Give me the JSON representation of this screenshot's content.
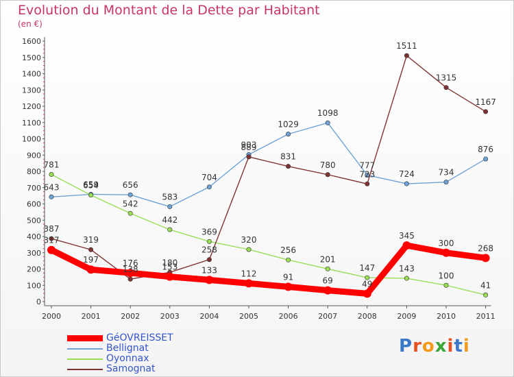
{
  "title": "Evolution du Montant de la Dette par Habitant",
  "subtitle": "(en €)",
  "logo": {
    "text": "Proxiti",
    "colors": [
      "#3c78c8",
      "#e8501c",
      "#f29a1a",
      "#3ba635",
      "#e8501c",
      "#3c78c8",
      "#f29a1a"
    ]
  },
  "chart_data": {
    "type": "line",
    "title": "Evolution du Montant de la Dette par Habitant",
    "subtitle": "(en €)",
    "xlabel": "",
    "ylabel": "",
    "x": [
      "2000",
      "2001",
      "2002",
      "2003",
      "2004",
      "2005",
      "2006",
      "2007",
      "2008",
      "2009",
      "2010",
      "2011"
    ],
    "ylim": [
      0,
      1600
    ],
    "yticks": [
      0,
      100,
      200,
      300,
      400,
      500,
      600,
      700,
      800,
      900,
      1000,
      1100,
      1200,
      1300,
      1400,
      1500,
      1600
    ],
    "grid": false,
    "legend_position": "bottom-left",
    "series": [
      {
        "name": "GéOVREISSET",
        "color": "#ff0000",
        "emphasis": true,
        "values": [
          317,
          197,
          176,
          153,
          133,
          112,
          91,
          69,
          49,
          345,
          300,
          268
        ]
      },
      {
        "name": "Bellignat",
        "color": "#6fa3d8",
        "emphasis": false,
        "values": [
          643,
          659,
          656,
          583,
          704,
          903,
          1029,
          1098,
          777,
          724,
          734,
          876
        ]
      },
      {
        "name": "Oyonnax",
        "color": "#99dd55",
        "emphasis": false,
        "values": [
          781,
          654,
          542,
          442,
          369,
          320,
          256,
          201,
          147,
          143,
          100,
          41
        ]
      },
      {
        "name": "Samognat",
        "color": "#803333",
        "emphasis": false,
        "values": [
          387,
          319,
          138,
          180,
          258,
          889,
          831,
          780,
          723,
          1511,
          1315,
          1167
        ]
      }
    ]
  }
}
